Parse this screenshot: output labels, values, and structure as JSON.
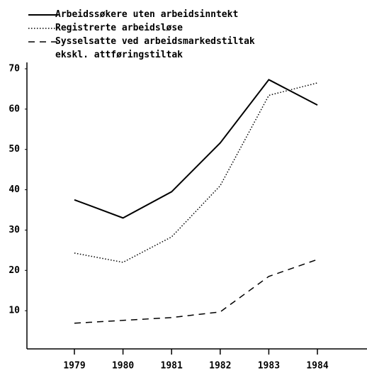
{
  "chart_data": {
    "type": "line",
    "categories": [
      "1979",
      "1980",
      "1981",
      "1982",
      "1983",
      "1984"
    ],
    "series": [
      {
        "name": "Arbeidssøkere uten arbeidsinntekt",
        "color": "#000000",
        "dash": "solid",
        "values": [
          37.5,
          33,
          39.5,
          51.6,
          67.3,
          61
        ]
      },
      {
        "name": "Registrerte arbeidsløse",
        "color": "#000000",
        "dash": "dotted",
        "values": [
          24.3,
          22,
          28.3,
          41,
          63.4,
          66.5
        ]
      },
      {
        "name": "Sysselsatte ved arbeidsmarkedstiltak ekskl. attføringstiltak",
        "color": "#000000",
        "dash": "dashed",
        "values": [
          6.9,
          7.6,
          8.3,
          9.7,
          18.5,
          22.7
        ]
      }
    ],
    "ylim": [
      0,
      70
    ],
    "yticks": [
      10,
      20,
      30,
      40,
      50,
      60,
      70
    ],
    "grid": false
  }
}
